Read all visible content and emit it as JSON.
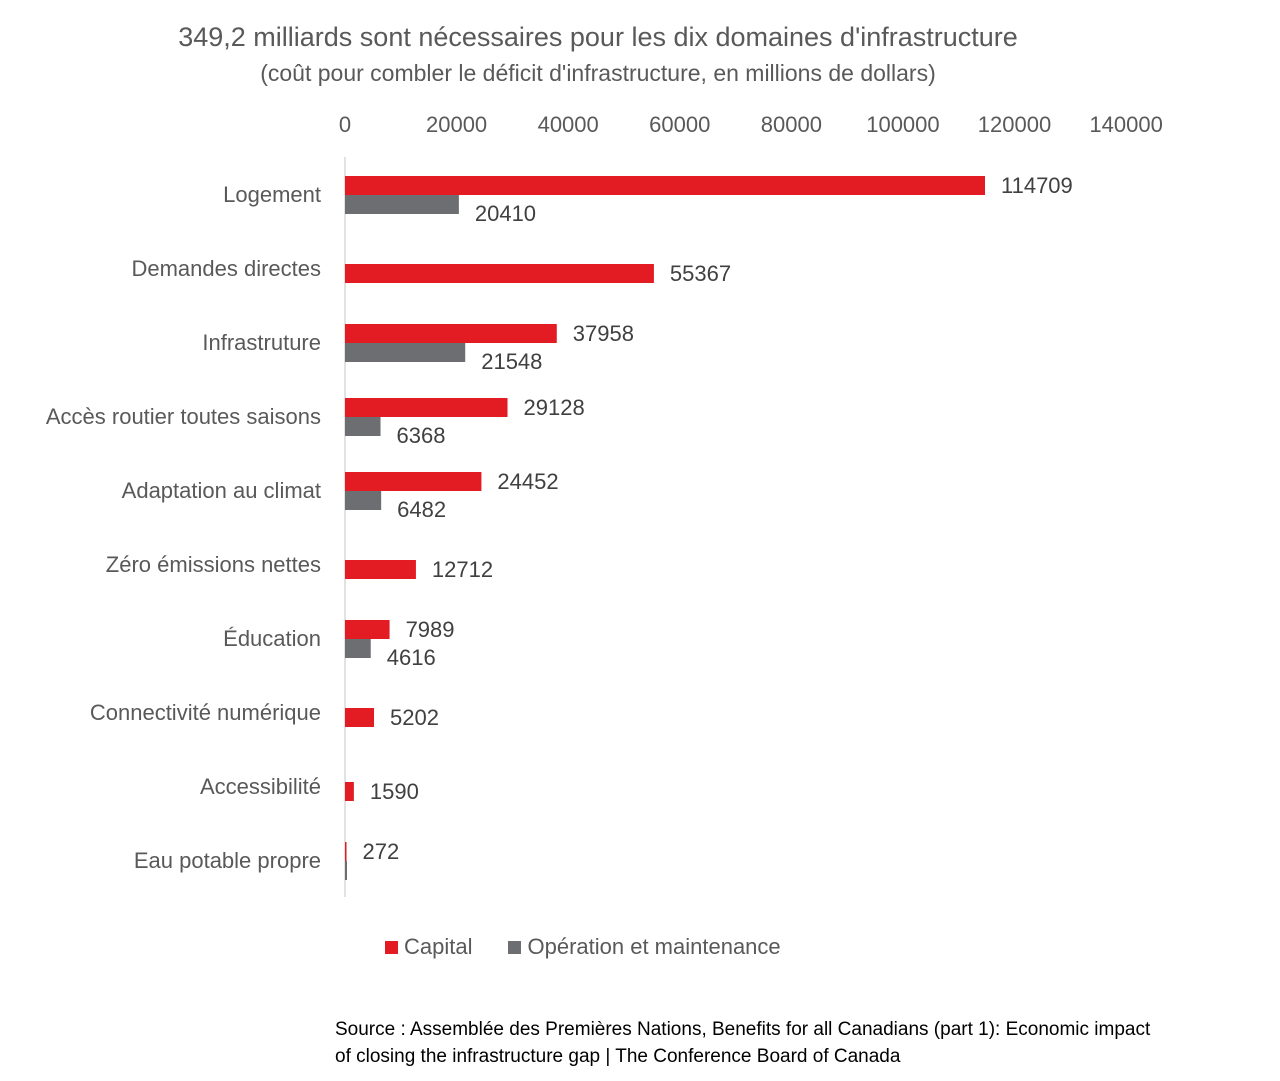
{
  "chart_data": {
    "type": "bar",
    "orientation": "horizontal",
    "title": "349,2 milliards sont nécessaires pour les dix domaines d'infrastructure",
    "subtitle": "(coût pour combler le déficit d'infrastructure, en millions de dollars)",
    "categories": [
      "Logement",
      "Demandes directes",
      "Infrastruture",
      "Accès routier toutes saisons",
      "Adaptation au climat",
      "Zéro émissions nettes",
      "Éducation",
      "Connectivité numérique",
      "Accessibilité",
      "Eau potable propre"
    ],
    "series": [
      {
        "name": "Capital",
        "color": "#e31b23",
        "values": [
          114709,
          55367,
          37958,
          29128,
          24452,
          12712,
          7989,
          5202,
          1590,
          272
        ],
        "labels": [
          "114709",
          "55367",
          "37958",
          "29128",
          "24452",
          "12712",
          "7989",
          "5202",
          "1590",
          "272"
        ]
      },
      {
        "name": "Opération et maintenance",
        "color": "#6d6e71",
        "values": [
          20410,
          null,
          21548,
          6368,
          6482,
          null,
          4616,
          null,
          null,
          250
        ],
        "labels": [
          "20410",
          "",
          "21548",
          "6368",
          "6482",
          "",
          "4616",
          "",
          "",
          ""
        ]
      }
    ],
    "xlim": [
      0,
      140000
    ],
    "xticks": [
      "0",
      "20000",
      "40000",
      "60000",
      "80000",
      "100000",
      "120000",
      "140000"
    ],
    "axis_position": "top",
    "legend_position": "bottom",
    "grid": false
  },
  "source": {
    "line1": "Source : Assemblée des Premières Nations, Benefits for all Canadians (part 1): Economic impact",
    "line2": "of closing the infrastructure gap | The Conference Board of Canada"
  }
}
